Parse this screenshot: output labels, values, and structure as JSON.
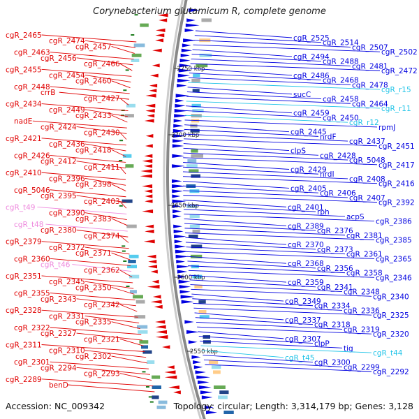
{
  "title": "Corynebacterium glutamicum R, complete genome",
  "footer": {
    "accession": "Accession: NC_009342",
    "summary": "Topology: circular; Length: 3,314,179 bp; Genes: 3,128"
  },
  "colors": {
    "reverse_strand": "#e00000",
    "forward_strand": "#0000e0",
    "trna": "#22c4e8",
    "pseudo_rna": "#ee88dd",
    "backbone": "#888888",
    "tick": "#1a7a1a"
  },
  "scale_labels": [
    "2750 kbp",
    "2700 kbp",
    "2650 kbp",
    "2600 kbp",
    "2550 kbp"
  ],
  "left_labels": [
    {
      "text": "cgR_2465",
      "type": "reverse"
    },
    {
      "text": "cgR_2474",
      "type": "reverse"
    },
    {
      "text": "cgR_2457",
      "type": "reverse"
    },
    {
      "text": "cgR_2463",
      "type": "reverse"
    },
    {
      "text": "cgR_2456",
      "type": "reverse"
    },
    {
      "text": "cgR_2466",
      "type": "reverse"
    },
    {
      "text": "cgR_2455",
      "type": "reverse"
    },
    {
      "text": "cgR_2454",
      "type": "reverse"
    },
    {
      "text": "cgR_2460",
      "type": "reverse"
    },
    {
      "text": "cgR_2448",
      "type": "reverse"
    },
    {
      "text": "crrB",
      "type": "reverse"
    },
    {
      "text": "cgR_2427",
      "type": "reverse"
    },
    {
      "text": "cgR_2434",
      "type": "reverse"
    },
    {
      "text": "cgR_2449",
      "type": "reverse"
    },
    {
      "text": "cgR_2433",
      "type": "reverse"
    },
    {
      "text": "nadE",
      "type": "reverse"
    },
    {
      "text": "cgR_2424",
      "type": "reverse"
    },
    {
      "text": "cgR_2430",
      "type": "reverse"
    },
    {
      "text": "cgR_2421",
      "type": "reverse"
    },
    {
      "text": "cgR_2436",
      "type": "reverse"
    },
    {
      "text": "cgR_2418",
      "type": "reverse"
    },
    {
      "text": "cgR_2426",
      "type": "reverse"
    },
    {
      "text": "cgR_2412",
      "type": "reverse"
    },
    {
      "text": "cgR_2411",
      "type": "reverse"
    },
    {
      "text": "cgR_2410",
      "type": "reverse"
    },
    {
      "text": "cgR_2396",
      "type": "reverse"
    },
    {
      "text": "cgR_2398",
      "type": "reverse"
    },
    {
      "text": "cgR_5046",
      "type": "reverse"
    },
    {
      "text": "cgR_2395",
      "type": "reverse"
    },
    {
      "text": "cgR_2403",
      "type": "reverse"
    },
    {
      "text": "cgR_t49",
      "type": "pseudo"
    },
    {
      "text": "cgR_2390",
      "type": "reverse"
    },
    {
      "text": "cgR_2383",
      "type": "reverse"
    },
    {
      "text": "cgR_t48",
      "type": "pseudo"
    },
    {
      "text": "cgR_2380",
      "type": "reverse"
    },
    {
      "text": "cgR_2374",
      "type": "reverse"
    },
    {
      "text": "cgR_2379",
      "type": "reverse"
    },
    {
      "text": "cgR_2372",
      "type": "reverse"
    },
    {
      "text": "cgR_2371",
      "type": "reverse"
    },
    {
      "text": "cgR_2360",
      "type": "reverse"
    },
    {
      "text": "cgR_t46",
      "type": "pseudo"
    },
    {
      "text": "cgR_2362",
      "type": "reverse"
    },
    {
      "text": "cgR_2351",
      "type": "reverse"
    },
    {
      "text": "cgR_2345",
      "type": "reverse"
    },
    {
      "text": "cgR_2350",
      "type": "reverse"
    },
    {
      "text": "cgR_2355",
      "type": "reverse"
    },
    {
      "text": "cgR_2343",
      "type": "reverse"
    },
    {
      "text": "cgR_2342",
      "type": "reverse"
    },
    {
      "text": "cgR_2328",
      "type": "reverse"
    },
    {
      "text": "cgR_2331",
      "type": "reverse"
    },
    {
      "text": "cgR_2335",
      "type": "reverse"
    },
    {
      "text": "cgR_2322",
      "type": "reverse"
    },
    {
      "text": "cgR_2327",
      "type": "reverse"
    },
    {
      "text": "cgR_2321",
      "type": "reverse"
    },
    {
      "text": "cgR_2311",
      "type": "reverse"
    },
    {
      "text": "cgR_2310",
      "type": "reverse"
    },
    {
      "text": "cgR_2302",
      "type": "reverse"
    },
    {
      "text": "cgR_2301",
      "type": "reverse"
    },
    {
      "text": "cgR_2294",
      "type": "reverse"
    },
    {
      "text": "cgR_2293",
      "type": "reverse"
    },
    {
      "text": "cgR_2289",
      "type": "reverse"
    },
    {
      "text": "benD",
      "type": "reverse"
    }
  ],
  "right_labels": [
    {
      "text": "cgR_2525",
      "type": "forward"
    },
    {
      "text": "cgR_2514",
      "type": "forward"
    },
    {
      "text": "cgR_2507",
      "type": "forward"
    },
    {
      "text": "cgR_2502",
      "type": "forward"
    },
    {
      "text": "cgR_2494",
      "type": "forward"
    },
    {
      "text": "cgR_2488",
      "type": "forward"
    },
    {
      "text": "cgR_2481",
      "type": "forward"
    },
    {
      "text": "cgR_2472",
      "type": "forward"
    },
    {
      "text": "cgR_2486",
      "type": "forward"
    },
    {
      "text": "cgR_2468",
      "type": "forward"
    },
    {
      "text": "cgR_2478",
      "type": "forward"
    },
    {
      "text": "cgR_r15",
      "type": "trna"
    },
    {
      "text": "sucC",
      "type": "forward"
    },
    {
      "text": "cgR_2458",
      "type": "forward"
    },
    {
      "text": "cgR_2464",
      "type": "forward"
    },
    {
      "text": "cgR_r11",
      "type": "trna"
    },
    {
      "text": "cgR_2459",
      "type": "forward"
    },
    {
      "text": "cgR_2450",
      "type": "forward"
    },
    {
      "text": "cgR_r12",
      "type": "trna"
    },
    {
      "text": "rpmJ",
      "type": "forward"
    },
    {
      "text": "cgR_2445",
      "type": "forward"
    },
    {
      "text": "nrdF",
      "type": "forward"
    },
    {
      "text": "cgR_2437",
      "type": "forward"
    },
    {
      "text": "cgR_2451",
      "type": "forward"
    },
    {
      "text": "clpS",
      "type": "forward"
    },
    {
      "text": "cgR_2428",
      "type": "forward"
    },
    {
      "text": "cgR_5048",
      "type": "forward"
    },
    {
      "text": "cgR_2417",
      "type": "forward"
    },
    {
      "text": "cgR_2429",
      "type": "forward"
    },
    {
      "text": "nrdI",
      "type": "forward"
    },
    {
      "text": "cgR_2408",
      "type": "forward"
    },
    {
      "text": "cgR_2416",
      "type": "forward"
    },
    {
      "text": "cgR_2405",
      "type": "forward"
    },
    {
      "text": "cgR_2406",
      "type": "forward"
    },
    {
      "text": "cgR_2407",
      "type": "forward"
    },
    {
      "text": "cgR_2392",
      "type": "forward"
    },
    {
      "text": "cgR_2401",
      "type": "forward"
    },
    {
      "text": "rph",
      "type": "forward"
    },
    {
      "text": "acpS",
      "type": "forward"
    },
    {
      "text": "cgR_2386",
      "type": "forward"
    },
    {
      "text": "cgR_2389",
      "type": "forward"
    },
    {
      "text": "cgR_2376",
      "type": "forward"
    },
    {
      "text": "cgR_2381",
      "type": "forward"
    },
    {
      "text": "cgR_2385",
      "type": "forward"
    },
    {
      "text": "cgR_2370",
      "type": "forward"
    },
    {
      "text": "cgR_2373",
      "type": "forward"
    },
    {
      "text": "cgR_2361",
      "type": "forward"
    },
    {
      "text": "cgR_2365",
      "type": "forward"
    },
    {
      "text": "cgR_2368",
      "type": "forward"
    },
    {
      "text": "cgR_2356",
      "type": "forward"
    },
    {
      "text": "cgR_2358",
      "type": "forward"
    },
    {
      "text": "cgR_2346",
      "type": "forward"
    },
    {
      "text": "cgR_2359",
      "type": "forward"
    },
    {
      "text": "cgR_2341",
      "type": "forward"
    },
    {
      "text": "cgR_2348",
      "type": "forward"
    },
    {
      "text": "cgR_2340",
      "type": "forward"
    },
    {
      "text": "cgR_2349",
      "type": "forward"
    },
    {
      "text": "cgR_2334",
      "type": "forward"
    },
    {
      "text": "cgR_2336",
      "type": "forward"
    },
    {
      "text": "cgR_2325",
      "type": "forward"
    },
    {
      "text": "cgR_2337",
      "type": "forward"
    },
    {
      "text": "cgR_2318",
      "type": "forward"
    },
    {
      "text": "cgR_2319",
      "type": "forward"
    },
    {
      "text": "cgR_2320",
      "type": "forward"
    },
    {
      "text": "cgR_2307",
      "type": "forward"
    },
    {
      "text": "clpP",
      "type": "forward"
    },
    {
      "text": "tig",
      "type": "forward"
    },
    {
      "text": "cgR_t44",
      "type": "trna"
    },
    {
      "text": "cgR_t45",
      "type": "trna"
    },
    {
      "text": "cgR_2300",
      "type": "forward"
    },
    {
      "text": "cgR_2299",
      "type": "forward"
    },
    {
      "text": "cgR_2292",
      "type": "forward"
    }
  ]
}
